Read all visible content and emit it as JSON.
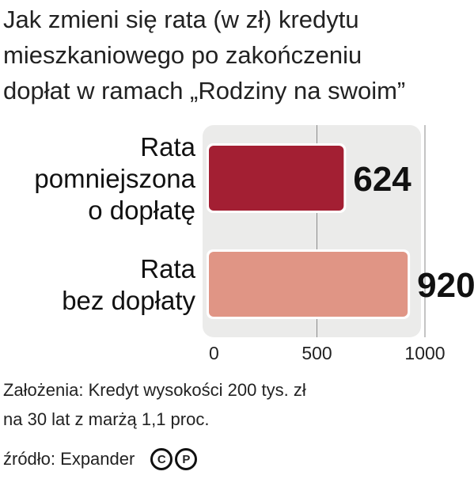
{
  "title_lines": [
    "Jak zmieni się rata (w zł) kredytu",
    "mieszkaniowego po zakończeniu",
    "dopłat w ramach „Rodziny na swoim”"
  ],
  "chart_data": {
    "type": "bar",
    "orientation": "horizontal",
    "categories": [
      [
        "Rata",
        "pomniejszona",
        "o dopłatę"
      ],
      [
        "Rata",
        "bez dopłaty"
      ]
    ],
    "values": [
      624,
      920
    ],
    "value_labels": [
      "624",
      "920"
    ],
    "colors": [
      "#a31f33",
      "#e09585"
    ],
    "xlim": [
      0,
      1000
    ],
    "xticks": [
      0,
      500,
      1000
    ],
    "xtick_labels": [
      "0",
      "500",
      "1000"
    ],
    "grid": true
  },
  "note_lines": [
    "Założenia: Kredyt  wysokości 200 tys. zł",
    "na 30 lat z marżą 1,1 proc."
  ],
  "source": "źródło: Expander",
  "copyright_icons": [
    "C",
    "P"
  ]
}
